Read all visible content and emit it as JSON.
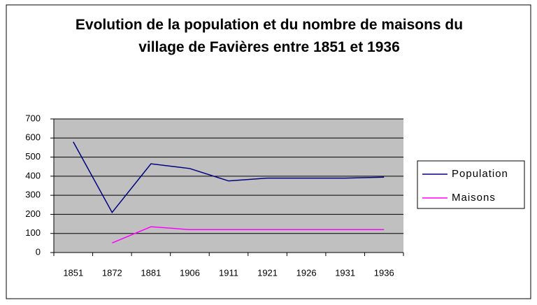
{
  "chart_data": {
    "type": "line",
    "title": "Evolution de la population et du nombre de maisons du village de Favières entre 1851 et 1936",
    "categories": [
      "1851",
      "1872",
      "1881",
      "1906",
      "1911",
      "1921",
      "1926",
      "1931",
      "1936"
    ],
    "series": [
      {
        "name": "Population",
        "color": "#000080",
        "values": [
          580,
          210,
          465,
          440,
          375,
          390,
          390,
          390,
          395
        ]
      },
      {
        "name": "Maisons",
        "color": "#ff00ff",
        "values": [
          null,
          50,
          135,
          120,
          120,
          120,
          120,
          120,
          120
        ]
      }
    ],
    "ylim": [
      0,
      700
    ],
    "yticks": [
      0,
      100,
      200,
      300,
      400,
      500,
      600,
      700
    ],
    "grid": true,
    "legend": "right"
  }
}
